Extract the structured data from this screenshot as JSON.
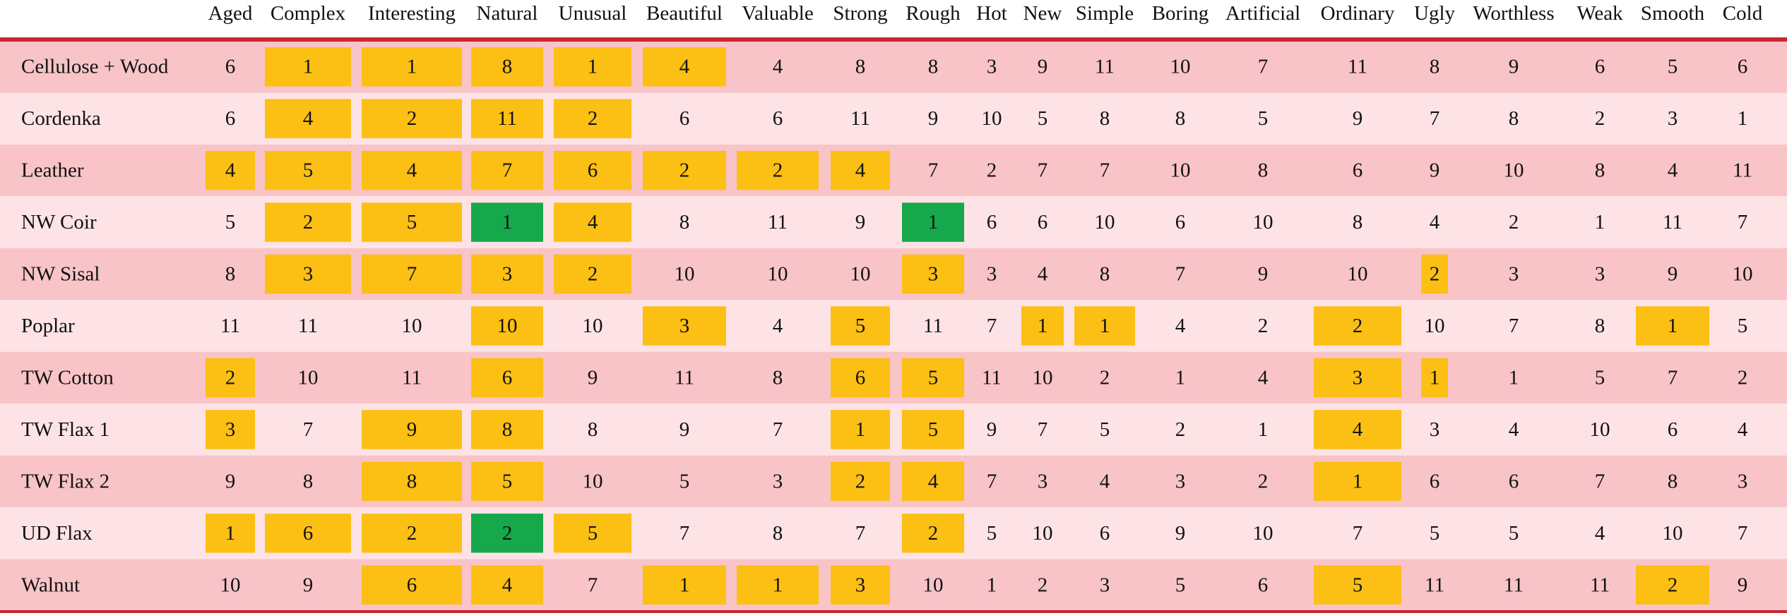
{
  "chart_data": {
    "type": "table",
    "columns": [
      "Aged",
      "Complex",
      "Interesting",
      "Natural",
      "Unusual",
      "Beautiful",
      "Valuable",
      "Strong",
      "Rough",
      "Hot",
      "New",
      "Simple",
      "Boring",
      "Artificial",
      "Ordinary",
      "Ugly",
      "Worthless",
      "Weak",
      "Smooth",
      "Cold"
    ],
    "rows": [
      {
        "label": "Cellulose + Wood",
        "values": [
          6,
          1,
          1,
          8,
          1,
          4,
          4,
          8,
          8,
          3,
          9,
          11,
          10,
          7,
          11,
          8,
          9,
          6,
          5,
          6
        ],
        "highlights": [
          "",
          "y",
          "y",
          "y",
          "y",
          "y",
          "",
          "",
          "",
          "",
          "",
          "",
          "",
          "",
          "",
          "",
          "",
          "",
          "",
          ""
        ]
      },
      {
        "label": "Cordenka",
        "values": [
          6,
          4,
          2,
          11,
          2,
          6,
          6,
          11,
          9,
          10,
          5,
          8,
          8,
          5,
          9,
          7,
          8,
          2,
          3,
          1
        ],
        "highlights": [
          "",
          "y",
          "y",
          "y",
          "y",
          "",
          "",
          "",
          "",
          "",
          "",
          "",
          "",
          "",
          "",
          "",
          "",
          "",
          "",
          ""
        ]
      },
      {
        "label": "Leather",
        "values": [
          4,
          5,
          4,
          7,
          6,
          2,
          2,
          4,
          7,
          2,
          7,
          7,
          10,
          8,
          6,
          9,
          10,
          8,
          4,
          11
        ],
        "highlights": [
          "y",
          "y",
          "y",
          "y",
          "y",
          "y",
          "y",
          "y",
          "",
          "",
          "",
          "",
          "",
          "",
          "",
          "",
          "",
          "",
          "",
          ""
        ]
      },
      {
        "label": "NW Coir",
        "values": [
          5,
          2,
          5,
          1,
          4,
          8,
          11,
          9,
          1,
          6,
          6,
          10,
          6,
          10,
          8,
          4,
          2,
          1,
          11,
          7
        ],
        "highlights": [
          "",
          "y",
          "y",
          "g",
          "y",
          "",
          "",
          "",
          "g",
          "",
          "",
          "",
          "",
          "",
          "",
          "",
          "",
          "",
          "",
          ""
        ]
      },
      {
        "label": "NW Sisal",
        "values": [
          8,
          3,
          7,
          3,
          2,
          10,
          10,
          10,
          3,
          3,
          4,
          8,
          7,
          9,
          10,
          2,
          3,
          3,
          9,
          10
        ],
        "highlights": [
          "",
          "y",
          "y",
          "y",
          "y",
          "",
          "",
          "",
          "y",
          "",
          "",
          "",
          "",
          "",
          "",
          "y",
          "",
          "",
          "",
          ""
        ]
      },
      {
        "label": "Poplar",
        "values": [
          11,
          11,
          10,
          10,
          10,
          3,
          4,
          5,
          11,
          7,
          1,
          1,
          4,
          2,
          2,
          10,
          7,
          8,
          1,
          5
        ],
        "highlights": [
          "",
          "",
          "",
          "y",
          "",
          "y",
          "",
          "y",
          "",
          "",
          "y",
          "y",
          "",
          "",
          "y",
          "",
          "",
          "",
          "y",
          ""
        ]
      },
      {
        "label": "TW Cotton",
        "values": [
          2,
          10,
          11,
          6,
          9,
          11,
          8,
          6,
          5,
          11,
          10,
          2,
          1,
          4,
          3,
          1,
          1,
          5,
          7,
          2
        ],
        "highlights": [
          "y",
          "",
          "",
          "y",
          "",
          "",
          "",
          "y",
          "y",
          "",
          "",
          "",
          "",
          "",
          "y",
          "y",
          "",
          "",
          "",
          ""
        ]
      },
      {
        "label": "TW Flax 1",
        "values": [
          3,
          7,
          9,
          8,
          8,
          9,
          7,
          1,
          5,
          9,
          7,
          5,
          2,
          1,
          4,
          3,
          4,
          10,
          6,
          4
        ],
        "highlights": [
          "y",
          "",
          "y",
          "y",
          "",
          "",
          "",
          "y",
          "y",
          "",
          "",
          "",
          "",
          "",
          "y",
          "",
          "",
          "",
          "",
          ""
        ]
      },
      {
        "label": "TW Flax 2",
        "values": [
          9,
          8,
          8,
          5,
          10,
          5,
          3,
          2,
          4,
          7,
          3,
          4,
          3,
          2,
          1,
          6,
          6,
          7,
          8,
          3
        ],
        "highlights": [
          "",
          "",
          "y",
          "y",
          "",
          "",
          "",
          "y",
          "y",
          "",
          "",
          "",
          "",
          "",
          "y",
          "",
          "",
          "",
          "",
          ""
        ]
      },
      {
        "label": "UD Flax",
        "values": [
          1,
          6,
          2,
          2,
          5,
          7,
          8,
          7,
          2,
          5,
          10,
          6,
          9,
          10,
          7,
          5,
          5,
          4,
          10,
          7
        ],
        "highlights": [
          "y",
          "y",
          "y",
          "g",
          "y",
          "",
          "",
          "",
          "y",
          "",
          "",
          "",
          "",
          "",
          "",
          "",
          "",
          "",
          "",
          ""
        ]
      },
      {
        "label": "Walnut",
        "values": [
          10,
          9,
          6,
          4,
          7,
          1,
          1,
          3,
          10,
          1,
          2,
          3,
          5,
          6,
          5,
          11,
          11,
          11,
          2,
          9
        ],
        "highlights": [
          "",
          "",
          "y",
          "y",
          "",
          "y",
          "y",
          "y",
          "",
          "",
          "",
          "",
          "",
          "",
          "y",
          "",
          "",
          "",
          "y",
          ""
        ]
      }
    ],
    "colors": {
      "row_dark": "#f8c4c8",
      "row_light": "#fde3e5",
      "rule": "#c8282e",
      "highlight_yellow": "#fcbf14",
      "highlight_green": "#16a84a",
      "text": "#111111"
    }
  }
}
